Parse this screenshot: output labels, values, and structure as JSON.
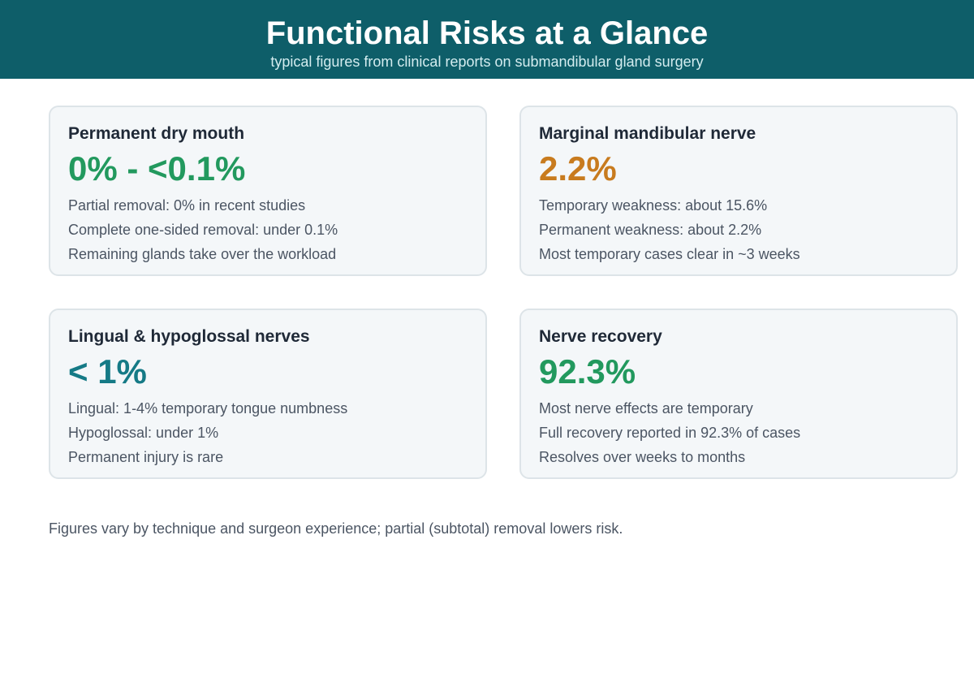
{
  "header": {
    "title": "Functional Risks at a Glance",
    "subtitle": "typical figures from clinical reports on submandibular gland surgery"
  },
  "cards": [
    {
      "title": "Permanent dry mouth",
      "value": "0% - <0.1%",
      "value_color": "#22995e",
      "lines": [
        "Partial removal: 0% in recent studies",
        "Complete one-sided removal: under 0.1%",
        "Remaining glands take over the workload"
      ]
    },
    {
      "title": "Marginal mandibular nerve",
      "value": "2.2%",
      "value_color": "#c87b1e",
      "lines": [
        "Temporary weakness: about 15.6%",
        "Permanent weakness: about 2.2%",
        "Most temporary cases clear in ~3 weeks"
      ]
    },
    {
      "title": "Lingual & hypoglossal nerves",
      "value": "< 1%",
      "value_color": "#157a86",
      "lines": [
        "Lingual: 1-4% temporary tongue numbness",
        "Hypoglossal: under 1%",
        "Permanent injury is rare"
      ]
    },
    {
      "title": "Nerve recovery",
      "value": "92.3%",
      "value_color": "#22995e",
      "lines": [
        "Most nerve effects are temporary",
        "Full recovery reported in 92.3% of cases",
        "Resolves over weeks to months"
      ]
    }
  ],
  "footnote": "Figures vary by technique and surgeon experience; partial (subtotal) removal lowers risk."
}
